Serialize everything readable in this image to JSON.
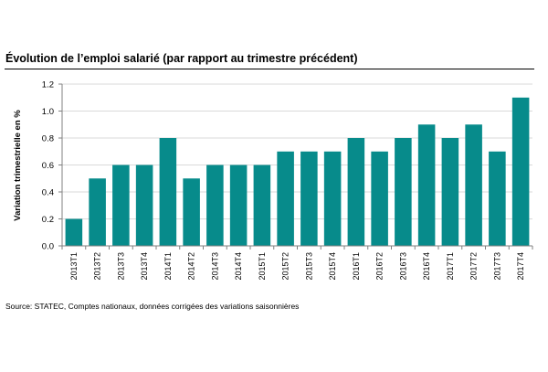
{
  "chart_data": {
    "type": "bar",
    "title": "Évolution de l’emploi salarié (par rapport au trimestre précédent)",
    "ylabel": "Variation trimestrielle en %",
    "xlabel": "",
    "ylim": [
      0,
      1.2
    ],
    "yticks": [
      "0.0",
      "0.2",
      "0.4",
      "0.6",
      "0.8",
      "1.0",
      "1.2"
    ],
    "grid": true,
    "legend": "none",
    "bar_color": "#078b8b",
    "categories": [
      "2013T1",
      "2013T2",
      "2013T3",
      "2013T4",
      "2014T1",
      "2014T2",
      "2014T3",
      "2014T4",
      "2015T1",
      "2015T2",
      "2015T3",
      "2015T4",
      "2016T1",
      "2016T2",
      "2016T3",
      "2016T4",
      "2017T1",
      "2017T2",
      "2017T3",
      "2017T4"
    ],
    "values": [
      0.2,
      0.5,
      0.6,
      0.6,
      0.8,
      0.5,
      0.6,
      0.6,
      0.6,
      0.7,
      0.7,
      0.7,
      0.8,
      0.7,
      0.8,
      0.9,
      0.8,
      0.9,
      0.7,
      1.1
    ]
  },
  "source": "Source: STATEC, Comptes nationaux, données corrigées des variations saisonnières"
}
